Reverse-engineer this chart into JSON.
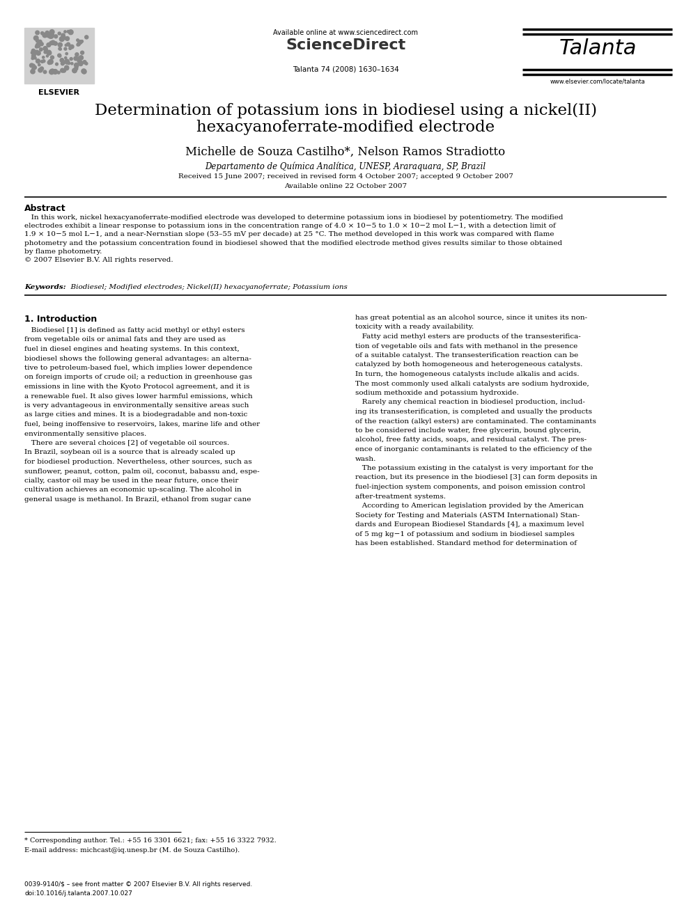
{
  "page_width": 9.92,
  "page_height": 13.23,
  "bg_color": "#ffffff",
  "available_online": "Available online at www.sciencedirect.com",
  "sciencedirect_text": "ScienceDirect",
  "journal_name": "Talanta",
  "journal_issue": "Talanta 74 (2008) 1630–1634",
  "journal_url": "www.elsevier.com/locate/talanta",
  "elsevier_text": "ELSEVIER",
  "title_line1": "Determination of potassium ions in biodiesel using a nickel(II)",
  "title_line2": "hexacyanoferrate-modified electrode",
  "authors": "Michelle de Souza Castilho*, Nelson Ramos Stradiotto",
  "affiliation": "Departamento de Química Analítica, UNESP, Araraquara, SP, Brazil",
  "received_line1": "Received 15 June 2007; received in revised form 4 October 2007; accepted 9 October 2007",
  "received_line2": "Available online 22 October 2007",
  "abstract_title": "Abstract",
  "abstract_para": "   In this work, nickel hexacyanoferrate-modified electrode was developed to determine potassium ions in biodiesel by potentiometry. The modified\nelectrodes exhibit a linear response to potassium ions in the concentration range of 4.0 × 10−5 to 1.0 × 10−2 mol L−1, with a detection limit of\n1.9 × 10−5 mol L−1, and a near-Nernstian slope (53–55 mV per decade) at 25 °C. The method developed in this work was compared with flame\nphotometry and the potassium concentration found in biodiesel showed that the modified electrode method gives results similar to those obtained\nby flame photometry.\n© 2007 Elsevier B.V. All rights reserved.",
  "keywords_label": "Keywords:",
  "keywords_text": "  Biodiesel; Modified electrodes; Nickel(II) hexacyanoferrate; Potassium ions",
  "section1_title": "1. Introduction",
  "col1_lines": [
    "   Biodiesel [1] is defined as fatty acid methyl or ethyl esters",
    "from vegetable oils or animal fats and they are used as",
    "fuel in diesel engines and heating systems. In this context,",
    "biodiesel shows the following general advantages: an alterna-",
    "tive to petroleum-based fuel, which implies lower dependence",
    "on foreign imports of crude oil; a reduction in greenhouse gas",
    "emissions in line with the Kyoto Protocol agreement, and it is",
    "a renewable fuel. It also gives lower harmful emissions, which",
    "is very advantageous in environmentally sensitive areas such",
    "as large cities and mines. It is a biodegradable and non-toxic",
    "fuel, being inoffensive to reservoirs, lakes, marine life and other",
    "environmentally sensitive places.",
    "   There are several choices [2] of vegetable oil sources.",
    "In Brazil, soybean oil is a source that is already scaled up",
    "for biodiesel production. Nevertheless, other sources, such as",
    "sunflower, peanut, cotton, palm oil, coconut, babassu and, espe-",
    "cially, castor oil may be used in the near future, once their",
    "cultivation achieves an economic up-scaling. The alcohol in",
    "general usage is methanol. In Brazil, ethanol from sugar cane"
  ],
  "col2_lines": [
    "has great potential as an alcohol source, since it unites its non-",
    "toxicity with a ready availability.",
    "   Fatty acid methyl esters are products of the transesterifica-",
    "tion of vegetable oils and fats with methanol in the presence",
    "of a suitable catalyst. The transesterification reaction can be",
    "catalyzed by both homogeneous and heterogeneous catalysts.",
    "In turn, the homogeneous catalysts include alkalis and acids.",
    "The most commonly used alkali catalysts are sodium hydroxide,",
    "sodium methoxide and potassium hydroxide.",
    "   Rarely any chemical reaction in biodiesel production, includ-",
    "ing its transesterification, is completed and usually the products",
    "of the reaction (alkyl esters) are contaminated. The contaminants",
    "to be considered include water, free glycerin, bound glycerin,",
    "alcohol, free fatty acids, soaps, and residual catalyst. The pres-",
    "ence of inorganic contaminants is related to the efficiency of the",
    "wash.",
    "   The potassium existing in the catalyst is very important for the",
    "reaction, but its presence in the biodiesel [3] can form deposits in",
    "fuel-injection system components, and poison emission control",
    "after-treatment systems.",
    "   According to American legislation provided by the American",
    "Society for Testing and Materials (ASTM International) Stan-",
    "dards and European Biodiesel Standards [4], a maximum level",
    "of 5 mg kg−1 of potassium and sodium in biodiesel samples",
    "has been established. Standard method for determination of"
  ],
  "footnote_line1": "* Corresponding author. Tel.: +55 16 3301 6621; fax: +55 16 3322 7932.",
  "footnote_line2": "E-mail address: michcast@iq.unesp.br (M. de Souza Castilho).",
  "footer_line1": "0039-9140/$ – see front matter © 2007 Elsevier B.V. All rights reserved.",
  "footer_line2": "doi:10.1016/j.talanta.2007.10.027"
}
